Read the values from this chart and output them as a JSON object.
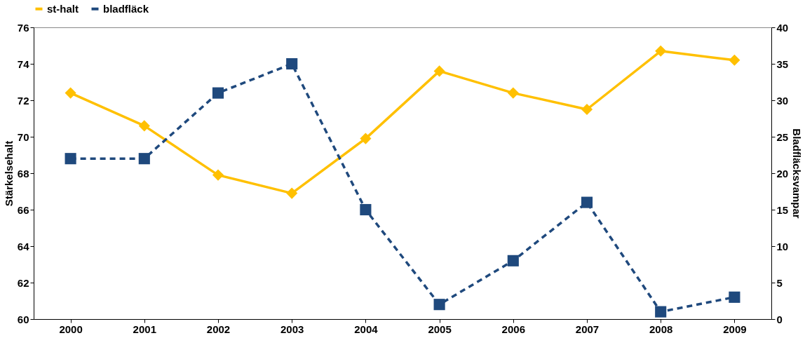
{
  "chart_data": {
    "type": "line",
    "categories": [
      "2000",
      "2001",
      "2002",
      "2003",
      "2004",
      "2005",
      "2006",
      "2007",
      "2008",
      "2009"
    ],
    "ylabel": "Stärkelsehalt",
    "y2label": "Bladfläcksvampar",
    "ylim": [
      60,
      76
    ],
    "yticks": [
      60,
      62,
      64,
      66,
      68,
      70,
      72,
      74,
      76
    ],
    "y2lim": [
      0,
      40
    ],
    "y2ticks": [
      0,
      5,
      10,
      15,
      20,
      25,
      30,
      35,
      40
    ],
    "legend": "top",
    "grid": false,
    "series": [
      {
        "name": "st-halt",
        "color": "#ffc000",
        "marker": "diamond",
        "line_style": "solid",
        "values": [
          72.4,
          70.6,
          67.9,
          66.9,
          69.9,
          73.6,
          72.4,
          71.5,
          74.7,
          74.2
        ]
      },
      {
        "name": "bladfläck",
        "color": "#1f497d",
        "marker": "square",
        "line_style": "dashed",
        "axis": "y2",
        "values": [
          22,
          22,
          31,
          35,
          15,
          2,
          8,
          16,
          1,
          3
        ]
      }
    ]
  }
}
